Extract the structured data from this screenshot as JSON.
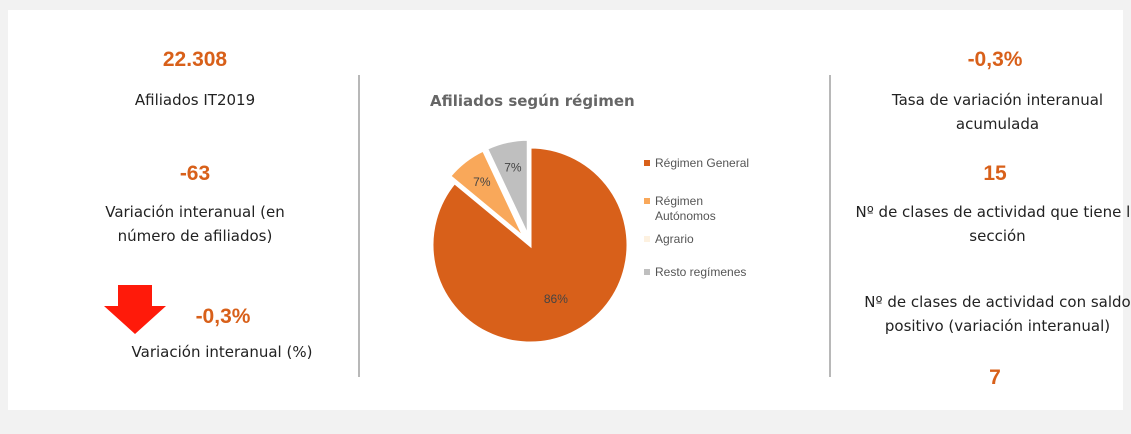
{
  "left": {
    "kpi1": {
      "value": "22.308",
      "label": "Afiliados IT2019"
    },
    "kpi2": {
      "value": "-63",
      "label": "Variación interanual (en número de afiliados)"
    },
    "kpi3": {
      "value": "-0,3%",
      "label": "Variación interanual (%)"
    }
  },
  "right": {
    "kpi1": {
      "value": "-0,3%",
      "label": "Tasa de variación interanual acumulada"
    },
    "kpi2": {
      "value": "15",
      "label": "Nº de clases de actividad que tiene la sección"
    },
    "kpi3": {
      "label": "Nº de clases de actividad con saldo positivo (variación interanual)",
      "value": "7"
    }
  },
  "chart_data": {
    "type": "pie",
    "title": "Afiliados según régimen",
    "categories": [
      "Régimen General",
      "Régimen Autónomos",
      "Agrario",
      "Resto regímenes"
    ],
    "values": [
      86,
      7,
      0,
      7
    ],
    "value_labels": [
      "86%",
      "7%",
      null,
      "7%"
    ],
    "colors": [
      "#d8601a",
      "#f9a85a",
      "#fdf1e0",
      "#bfbfbf"
    ]
  }
}
